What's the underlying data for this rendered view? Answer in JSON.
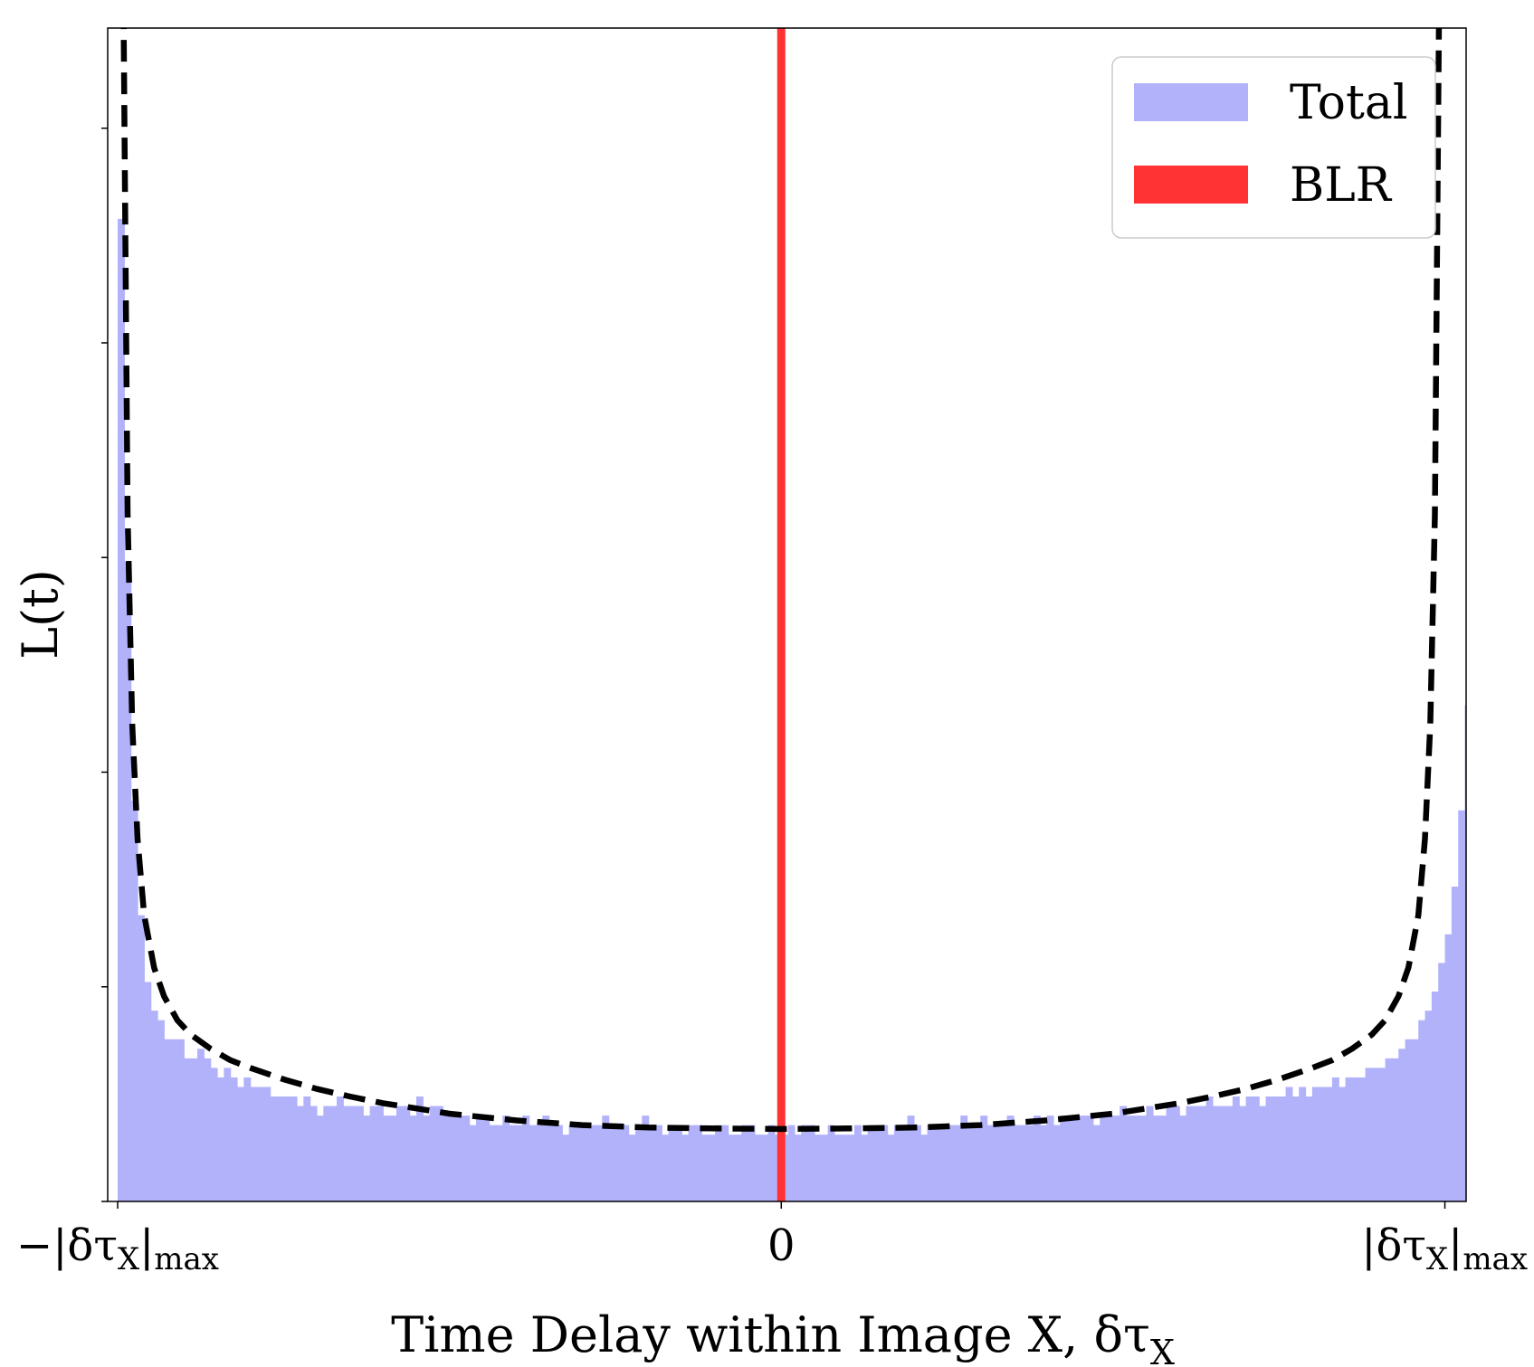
{
  "chart_data": {
    "type": "bar",
    "xlabel": "Time Delay within Image X, δτ",
    "xlabel_sub": "X",
    "ylabel": "L(t)",
    "xlim": [
      -1.015,
      1.032
    ],
    "ylim": [
      0,
      1.23
    ],
    "x_ticks": [
      {
        "value": -1,
        "label_main": "−|δτ",
        "label_sub": "X",
        "label_tail": "|",
        "label_tail_sub": "max"
      },
      {
        "value": 0,
        "label_main": "0",
        "label_sub": "",
        "label_tail": "",
        "label_tail_sub": ""
      },
      {
        "value": 1,
        "label_main": "|δτ",
        "label_sub": "X",
        "label_tail": "|",
        "label_tail_sub": "max"
      }
    ],
    "y_ticks": [
      0,
      0.225,
      0.45,
      0.675,
      0.9,
      1.125
    ],
    "legend": {
      "position": "upper right",
      "entries": [
        {
          "label": "Total",
          "color": "#b2b2fb"
        },
        {
          "label": "BLR",
          "color": "#ff3333"
        }
      ]
    },
    "series": [
      {
        "name": "Total",
        "kind": "histogram",
        "color": "#b2b2fb",
        "x_range": [
          -1,
          1
        ],
        "bins": 200,
        "values": [
          1.03,
          0.67,
          0.42,
          0.3,
          0.23,
          0.2,
          0.19,
          0.17,
          0.17,
          0.17,
          0.15,
          0.15,
          0.16,
          0.15,
          0.14,
          0.13,
          0.14,
          0.13,
          0.12,
          0.13,
          0.12,
          0.12,
          0.12,
          0.11,
          0.11,
          0.11,
          0.11,
          0.1,
          0.11,
          0.1,
          0.09,
          0.1,
          0.1,
          0.11,
          0.1,
          0.1,
          0.1,
          0.09,
          0.1,
          0.1,
          0.09,
          0.09,
          0.1,
          0.1,
          0.09,
          0.11,
          0.09,
          0.1,
          0.1,
          0.09,
          0.09,
          0.09,
          0.09,
          0.08,
          0.09,
          0.09,
          0.08,
          0.08,
          0.09,
          0.08,
          0.08,
          0.09,
          0.08,
          0.08,
          0.09,
          0.08,
          0.08,
          0.07,
          0.08,
          0.08,
          0.08,
          0.08,
          0.08,
          0.09,
          0.08,
          0.08,
          0.08,
          0.07,
          0.08,
          0.09,
          0.08,
          0.08,
          0.07,
          0.08,
          0.08,
          0.07,
          0.08,
          0.08,
          0.07,
          0.07,
          0.08,
          0.08,
          0.07,
          0.07,
          0.08,
          0.08,
          0.07,
          0.07,
          0.08,
          0.07,
          0.07,
          0.08,
          0.07,
          0.08,
          0.08,
          0.07,
          0.07,
          0.08,
          0.07,
          0.07,
          0.07,
          0.08,
          0.07,
          0.08,
          0.08,
          0.08,
          0.07,
          0.08,
          0.08,
          0.09,
          0.08,
          0.07,
          0.08,
          0.08,
          0.08,
          0.08,
          0.08,
          0.09,
          0.08,
          0.08,
          0.09,
          0.08,
          0.08,
          0.08,
          0.09,
          0.08,
          0.08,
          0.08,
          0.09,
          0.08,
          0.09,
          0.08,
          0.09,
          0.09,
          0.09,
          0.09,
          0.09,
          0.08,
          0.09,
          0.09,
          0.09,
          0.1,
          0.09,
          0.09,
          0.09,
          0.1,
          0.09,
          0.09,
          0.1,
          0.1,
          0.09,
          0.1,
          0.1,
          0.1,
          0.11,
          0.1,
          0.1,
          0.1,
          0.11,
          0.1,
          0.11,
          0.11,
          0.1,
          0.11,
          0.11,
          0.11,
          0.12,
          0.11,
          0.12,
          0.11,
          0.12,
          0.12,
          0.12,
          0.13,
          0.12,
          0.13,
          0.13,
          0.13,
          0.14,
          0.14,
          0.14,
          0.15,
          0.15,
          0.16,
          0.17,
          0.17,
          0.19,
          0.2,
          0.22,
          0.25,
          0.28,
          0.33,
          0.41,
          0.52,
          0.7,
          1.02
        ]
      },
      {
        "name": "BLR",
        "kind": "vline",
        "color": "#ff3333",
        "x": 0
      },
      {
        "name": "",
        "kind": "dashed-curve",
        "color": "#000000",
        "x": [
          -0.992,
          -0.985,
          -0.978,
          -0.97,
          -0.96,
          -0.945,
          -0.93,
          -0.91,
          -0.89,
          -0.86,
          -0.83,
          -0.8,
          -0.75,
          -0.7,
          -0.65,
          -0.6,
          -0.5,
          -0.4,
          -0.3,
          -0.2,
          -0.1,
          0,
          0.1,
          0.2,
          0.3,
          0.4,
          0.5,
          0.6,
          0.65,
          0.7,
          0.75,
          0.8,
          0.83,
          0.86,
          0.89,
          0.91,
          0.93,
          0.945,
          0.96,
          0.97,
          0.978,
          0.985,
          0.992
        ],
        "y": [
          1.32,
          0.72,
          0.5,
          0.38,
          0.3,
          0.245,
          0.215,
          0.19,
          0.175,
          0.16,
          0.148,
          0.14,
          0.128,
          0.118,
          0.11,
          0.103,
          0.092,
          0.085,
          0.08,
          0.0775,
          0.0765,
          0.076,
          0.0765,
          0.0775,
          0.08,
          0.085,
          0.092,
          0.103,
          0.11,
          0.118,
          0.128,
          0.14,
          0.148,
          0.16,
          0.175,
          0.19,
          0.215,
          0.245,
          0.3,
          0.38,
          0.5,
          0.72,
          1.32
        ]
      }
    ]
  }
}
